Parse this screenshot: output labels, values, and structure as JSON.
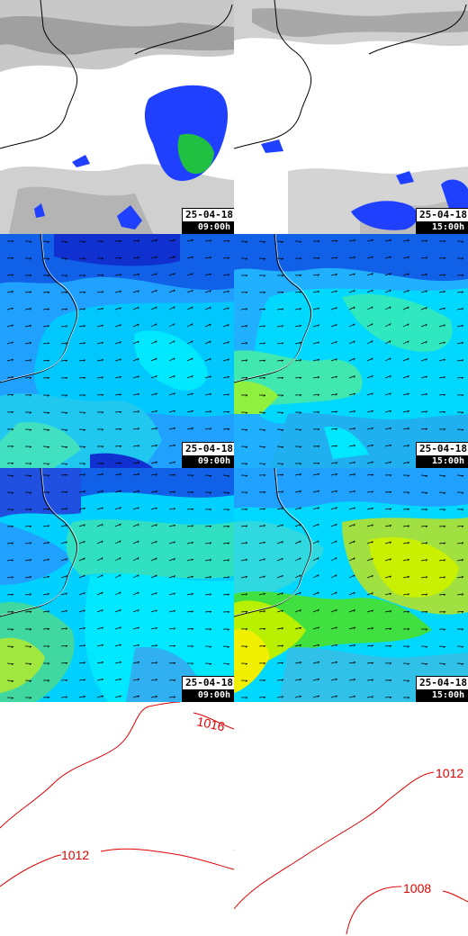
{
  "panels": [
    {
      "id": "precip-a",
      "date": "25-04-18",
      "time": "09:00h"
    },
    {
      "id": "precip-b",
      "date": "25-04-18",
      "time": "15:00h"
    },
    {
      "id": "wind1-a",
      "date": "25-04-18",
      "time": "09:00h"
    },
    {
      "id": "wind1-b",
      "date": "25-04-18",
      "time": "15:00h"
    },
    {
      "id": "wind2-a",
      "date": "25-04-18",
      "time": "09:00h"
    },
    {
      "id": "wind2-b",
      "date": "25-04-18",
      "time": "15:00h"
    }
  ],
  "isobars": {
    "left": [
      "1016",
      "1012"
    ],
    "right": [
      "1012",
      "1008"
    ]
  },
  "colors": {
    "precip_light": "#2040ff",
    "precip_heavy": "#20c040",
    "wind_dark": "#1030d0",
    "wind_mid": "#20a0ff",
    "wind_light": "#00e8ff",
    "wind_green": "#30e080",
    "wind_yellow": "#c8f000",
    "isobar": "#e00000"
  }
}
